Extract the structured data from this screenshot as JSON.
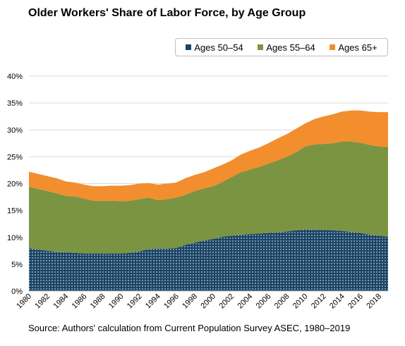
{
  "title": "Older Workers' Share of Labor Force, by Age Group",
  "source": "Source: Authors' calculation from Current Population Survey ASEC, 1980–2019",
  "colors": {
    "ages_50_54": "#1a4466",
    "ages_50_54_dots": "#ffffff",
    "ages_55_64": "#7b9442",
    "ages_65_plus": "#f28e2e",
    "gridline": "#d9d9d9"
  },
  "chart_data": {
    "type": "area",
    "stacked": true,
    "title": "Older Workers' Share of Labor Force, by Age Group",
    "xlabel": "",
    "ylabel": "",
    "ylim": [
      0,
      40
    ],
    "y_ticks": [
      "0%",
      "5%",
      "10%",
      "15%",
      "20%",
      "25%",
      "30%",
      "35%",
      "40%"
    ],
    "x_ticks": [
      "1980",
      "1982",
      "1984",
      "1986",
      "1988",
      "1990",
      "1992",
      "1994",
      "1996",
      "1998",
      "2000",
      "2002",
      "2004",
      "2006",
      "2008",
      "2010",
      "2012",
      "2014",
      "2016",
      "2018"
    ],
    "grid": true,
    "legend_position": "top-right",
    "x": [
      1980,
      1981,
      1982,
      1983,
      1984,
      1985,
      1986,
      1987,
      1988,
      1989,
      1990,
      1991,
      1992,
      1993,
      1994,
      1995,
      1996,
      1997,
      1998,
      1999,
      2000,
      2001,
      2002,
      2003,
      2004,
      2005,
      2006,
      2007,
      2008,
      2009,
      2010,
      2011,
      2012,
      2013,
      2014,
      2015,
      2016,
      2017,
      2018,
      2019
    ],
    "series": [
      {
        "name": "Ages 50–54",
        "key": "ages_50_54",
        "values": [
          8.0,
          7.7,
          7.5,
          7.3,
          7.2,
          7.1,
          7.0,
          7.0,
          7.0,
          7.0,
          7.0,
          7.1,
          7.4,
          7.8,
          7.9,
          7.9,
          8.0,
          8.6,
          9.0,
          9.4,
          9.7,
          10.1,
          10.3,
          10.5,
          10.6,
          10.7,
          10.8,
          10.9,
          11.1,
          11.3,
          11.5,
          11.4,
          11.4,
          11.3,
          11.2,
          11.0,
          10.8,
          10.5,
          10.3,
          10.1
        ]
      },
      {
        "name": "Ages 55–64",
        "key": "ages_55_64",
        "values": [
          11.4,
          11.3,
          11.1,
          10.9,
          10.5,
          10.5,
          10.2,
          9.8,
          9.8,
          9.8,
          9.7,
          9.7,
          9.7,
          9.6,
          9.0,
          9.2,
          9.4,
          9.3,
          9.6,
          9.7,
          9.8,
          10.2,
          10.9,
          11.6,
          12.0,
          12.4,
          12.9,
          13.4,
          13.9,
          14.5,
          15.4,
          15.9,
          16.0,
          16.2,
          16.6,
          16.8,
          16.8,
          16.7,
          16.6,
          16.7
        ]
      },
      {
        "name": "Ages 65+",
        "key": "ages_65_plus",
        "values": [
          2.8,
          2.8,
          2.8,
          2.8,
          2.7,
          2.6,
          2.6,
          2.7,
          2.7,
          2.8,
          2.9,
          2.9,
          2.9,
          2.7,
          2.9,
          2.9,
          2.8,
          3.1,
          3.0,
          3.0,
          3.3,
          3.2,
          3.1,
          3.3,
          3.5,
          3.6,
          3.8,
          4.1,
          4.2,
          4.4,
          4.3,
          4.7,
          5.1,
          5.4,
          5.6,
          5.8,
          6.0,
          6.2,
          6.4,
          6.5
        ]
      }
    ]
  }
}
